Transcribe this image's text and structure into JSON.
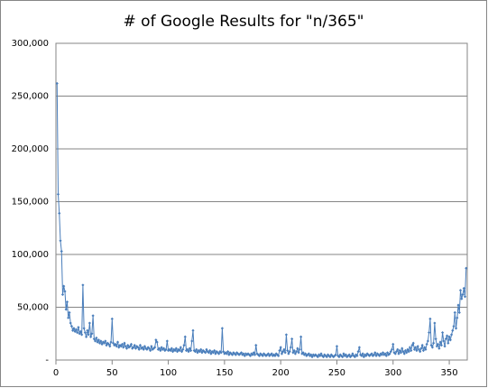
{
  "chart_data": {
    "type": "line",
    "title": "# of Google Results for \"n/365\"",
    "color": "#4a7ebb",
    "grid": true,
    "xlim": [
      0,
      366
    ],
    "xticks": [
      0,
      50,
      100,
      150,
      200,
      250,
      300,
      350
    ],
    "ylim": [
      0,
      300000
    ],
    "yticks": [
      {
        "value": 0,
        "label": "-"
      },
      {
        "value": 50000,
        "label": "50,000"
      },
      {
        "value": 100000,
        "label": "100,000"
      },
      {
        "value": 150000,
        "label": "150,000"
      },
      {
        "value": 200000,
        "label": "200,000"
      },
      {
        "value": 250000,
        "label": "250,000"
      },
      {
        "value": 300000,
        "label": "300,000"
      }
    ],
    "x": [
      1,
      2,
      3,
      4,
      5,
      6,
      7,
      8,
      9,
      10,
      11,
      12,
      13,
      14,
      15,
      16,
      17,
      18,
      19,
      20,
      21,
      22,
      23,
      24,
      25,
      26,
      27,
      28,
      29,
      30,
      31,
      32,
      33,
      34,
      35,
      36,
      37,
      38,
      39,
      40,
      41,
      42,
      43,
      44,
      45,
      46,
      47,
      48,
      49,
      50,
      51,
      52,
      53,
      54,
      55,
      56,
      57,
      58,
      59,
      60,
      61,
      62,
      63,
      64,
      65,
      66,
      67,
      68,
      69,
      70,
      71,
      72,
      73,
      74,
      75,
      76,
      77,
      78,
      79,
      80,
      81,
      82,
      83,
      84,
      85,
      86,
      87,
      88,
      89,
      90,
      91,
      92,
      93,
      94,
      95,
      96,
      97,
      98,
      99,
      100,
      101,
      102,
      103,
      104,
      105,
      106,
      107,
      108,
      109,
      110,
      111,
      112,
      113,
      114,
      115,
      116,
      117,
      118,
      119,
      120,
      121,
      122,
      123,
      124,
      125,
      126,
      127,
      128,
      129,
      130,
      131,
      132,
      133,
      134,
      135,
      136,
      137,
      138,
      139,
      140,
      141,
      142,
      143,
      144,
      145,
      146,
      147,
      148,
      149,
      150,
      151,
      152,
      153,
      154,
      155,
      156,
      157,
      158,
      159,
      160,
      161,
      162,
      163,
      164,
      165,
      166,
      167,
      168,
      169,
      170,
      171,
      172,
      173,
      174,
      175,
      176,
      177,
      178,
      179,
      180,
      181,
      182,
      183,
      184,
      185,
      186,
      187,
      188,
      189,
      190,
      191,
      192,
      193,
      194,
      195,
      196,
      197,
      198,
      199,
      200,
      201,
      202,
      203,
      204,
      205,
      206,
      207,
      208,
      209,
      210,
      211,
      212,
      213,
      214,
      215,
      216,
      217,
      218,
      219,
      220,
      221,
      222,
      223,
      224,
      225,
      226,
      227,
      228,
      229,
      230,
      231,
      232,
      233,
      234,
      235,
      236,
      237,
      238,
      239,
      240,
      241,
      242,
      243,
      244,
      245,
      246,
      247,
      248,
      249,
      250,
      251,
      252,
      253,
      254,
      255,
      256,
      257,
      258,
      259,
      260,
      261,
      262,
      263,
      264,
      265,
      266,
      267,
      268,
      269,
      270,
      271,
      272,
      273,
      274,
      275,
      276,
      277,
      278,
      279,
      280,
      281,
      282,
      283,
      284,
      285,
      286,
      287,
      288,
      289,
      290,
      291,
      292,
      293,
      294,
      295,
      296,
      297,
      298,
      299,
      300,
      301,
      302,
      303,
      304,
      305,
      306,
      307,
      308,
      309,
      310,
      311,
      312,
      313,
      314,
      315,
      316,
      317,
      318,
      319,
      320,
      321,
      322,
      323,
      324,
      325,
      326,
      327,
      328,
      329,
      330,
      331,
      332,
      333,
      334,
      335,
      336,
      337,
      338,
      339,
      340,
      341,
      342,
      343,
      344,
      345,
      346,
      347,
      348,
      349,
      350,
      351,
      352,
      353,
      354,
      355,
      356,
      357,
      358,
      359,
      360,
      361,
      362,
      363,
      364,
      365
    ],
    "values": [
      262000,
      157000,
      139000,
      113000,
      103000,
      62000,
      70000,
      65000,
      48000,
      55000,
      40000,
      45000,
      35000,
      32000,
      28000,
      30000,
      27000,
      29000,
      26000,
      31000,
      25000,
      27000,
      24000,
      71000,
      30000,
      26000,
      22000,
      28000,
      24000,
      35000,
      22000,
      25000,
      42000,
      20000,
      18000,
      21000,
      17000,
      19000,
      16000,
      18000,
      15000,
      17000,
      16000,
      18000,
      14000,
      16000,
      15000,
      13000,
      17000,
      39000,
      16000,
      14000,
      15000,
      13000,
      17000,
      12000,
      14000,
      13000,
      15000,
      12000,
      16000,
      13000,
      11000,
      14000,
      12000,
      13000,
      15000,
      11000,
      12000,
      14000,
      11000,
      13000,
      12000,
      10000,
      14000,
      11000,
      12000,
      10000,
      13000,
      11000,
      10000,
      12000,
      11000,
      9000,
      13000,
      10000,
      11000,
      12000,
      19000,
      17000,
      10000,
      11000,
      9000,
      12000,
      10000,
      11000,
      9000,
      10000,
      18000,
      9000,
      10000,
      9000,
      11000,
      8000,
      10000,
      9000,
      11000,
      8000,
      10000,
      9000,
      12000,
      8000,
      10000,
      14000,
      22000,
      9000,
      10000,
      8000,
      11000,
      9000,
      18000,
      28000,
      9000,
      8000,
      10000,
      7000,
      9000,
      8000,
      10000,
      7000,
      9000,
      8000,
      7000,
      10000,
      8000,
      7000,
      9000,
      6000,
      8000,
      7000,
      9000,
      6000,
      8000,
      7000,
      6000,
      8000,
      7000,
      30000,
      8000,
      6000,
      7000,
      6000,
      8000,
      5000,
      7000,
      6000,
      5000,
      7000,
      6000,
      5000,
      7000,
      6000,
      5000,
      6000,
      7000,
      5000,
      6000,
      4000,
      6000,
      5000,
      6000,
      5000,
      4000,
      6000,
      5000,
      7000,
      5000,
      14000,
      6000,
      5000,
      4000,
      6000,
      5000,
      4000,
      6000,
      5000,
      4000,
      5000,
      6000,
      4000,
      5000,
      6000,
      4000,
      5000,
      4000,
      6000,
      5000,
      4000,
      9000,
      12000,
      6000,
      8000,
      10000,
      7000,
      24000,
      9000,
      6000,
      8000,
      12000,
      20000,
      7000,
      9000,
      6000,
      8000,
      11000,
      7000,
      10000,
      22000,
      6000,
      7000,
      5000,
      6000,
      4000,
      5000,
      6000,
      4000,
      5000,
      3000,
      5000,
      4000,
      5000,
      4000,
      3000,
      5000,
      4000,
      6000,
      4000,
      3000,
      5000,
      4000,
      3000,
      5000,
      4000,
      3000,
      5000,
      4000,
      3000,
      4000,
      5000,
      13000,
      4000,
      3000,
      5000,
      4000,
      3000,
      6000,
      4000,
      5000,
      3000,
      4000,
      5000,
      3000,
      4000,
      6000,
      4000,
      3000,
      5000,
      4000,
      8000,
      12000,
      5000,
      4000,
      6000,
      3000,
      5000,
      4000,
      6000,
      5000,
      4000,
      5000,
      6000,
      4000,
      5000,
      7000,
      4000,
      6000,
      5000,
      4000,
      6000,
      5000,
      7000,
      5000,
      6000,
      4000,
      7000,
      5000,
      6000,
      8000,
      10000,
      15000,
      7000,
      6000,
      8000,
      10000,
      6000,
      9000,
      7000,
      11000,
      8000,
      6000,
      9000,
      7000,
      10000,
      8000,
      12000,
      9000,
      14000,
      16000,
      10000,
      12000,
      9000,
      13000,
      10000,
      8000,
      11000,
      14000,
      9000,
      12000,
      10000,
      15000,
      18000,
      26000,
      39000,
      14000,
      12000,
      16000,
      35000,
      20000,
      13000,
      15000,
      11000,
      17000,
      14000,
      26000,
      18000,
      13000,
      20000,
      23000,
      16000,
      22000,
      19000,
      24000,
      28000,
      32000,
      45000,
      30000,
      40000,
      52000,
      45000,
      66000,
      58000,
      62000,
      68000,
      60000,
      87000
    ]
  }
}
